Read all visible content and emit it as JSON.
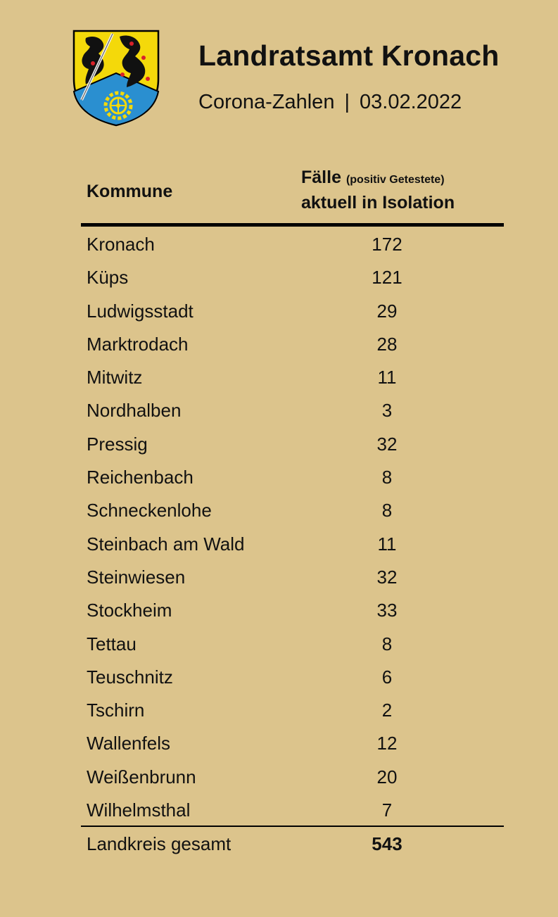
{
  "header": {
    "title": "Landratsamt Kronach",
    "subtitle_left": "Corona-Zahlen",
    "subtitle_sep": "|",
    "subtitle_date": "03.02.2022"
  },
  "table": {
    "col_kommune": "Kommune",
    "col_faelle_main": "Fälle",
    "col_faelle_small": "(positiv Getestete)",
    "col_faelle_line2": "aktuell in Isolation",
    "rows": [
      {
        "name": "Kronach",
        "value": "172"
      },
      {
        "name": "Küps",
        "value": "121"
      },
      {
        "name": "Ludwigsstadt",
        "value": "29"
      },
      {
        "name": "Marktrodach",
        "value": "28"
      },
      {
        "name": "Mitwitz",
        "value": "11"
      },
      {
        "name": "Nordhalben",
        "value": "3"
      },
      {
        "name": "Pressig",
        "value": "32"
      },
      {
        "name": "Reichenbach",
        "value": "8"
      },
      {
        "name": "Schneckenlohe",
        "value": "8"
      },
      {
        "name": "Steinbach am Wald",
        "value": "11"
      },
      {
        "name": "Steinwiesen",
        "value": "32"
      },
      {
        "name": "Stockheim",
        "value": "33"
      },
      {
        "name": "Tettau",
        "value": "8"
      },
      {
        "name": "Teuschnitz",
        "value": "6"
      },
      {
        "name": "Tschirn",
        "value": "2"
      },
      {
        "name": "Wallenfels",
        "value": "12"
      },
      {
        "name": "Weißenbrunn",
        "value": "20"
      },
      {
        "name": "Wilhelmsthal",
        "value": "7"
      }
    ],
    "total_label": "Landkreis gesamt",
    "total_value": "543"
  },
  "colors": {
    "background": "#dcc48c",
    "crest_yellow": "#f4d90a",
    "crest_blue": "#2a8fd0",
    "crest_red": "#d8222a"
  },
  "icons": {
    "crest": "coat-of-arms-icon"
  }
}
